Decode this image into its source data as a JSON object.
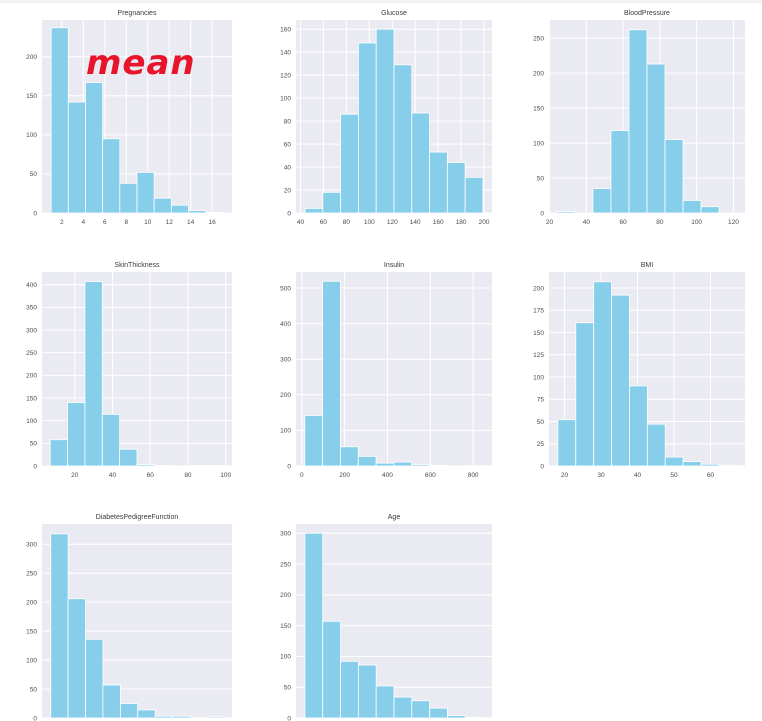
{
  "chart_data": [
    {
      "type": "bar",
      "title": "Pregnancies",
      "xlim": [
        0.15,
        17.85
      ],
      "ylim": [
        0,
        247
      ],
      "bins": [
        [
          1,
          2.6
        ],
        [
          2.6,
          4.2
        ],
        [
          4.2,
          5.8
        ],
        [
          5.8,
          7.4
        ],
        [
          7.4,
          9.0
        ],
        [
          9.0,
          10.6
        ],
        [
          10.6,
          12.2
        ],
        [
          12.2,
          13.8
        ],
        [
          13.8,
          15.4
        ],
        [
          15.4,
          17.0
        ]
      ],
      "values": [
        237,
        142,
        167,
        95,
        38,
        52,
        19,
        10,
        3,
        1
      ],
      "xticks": [
        2,
        4,
        6,
        8,
        10,
        12,
        14,
        16
      ],
      "yticks": [
        0,
        50,
        100,
        150,
        200
      ],
      "color": "#87ceeb",
      "annotation": "mean"
    },
    {
      "type": "bar",
      "title": "Glucose",
      "xlim": [
        36.1,
        206.9
      ],
      "ylim": [
        0,
        168
      ],
      "bins": [
        [
          44,
          59.5
        ],
        [
          59.5,
          75
        ],
        [
          75,
          90.5
        ],
        [
          90.5,
          106
        ],
        [
          106,
          121.5
        ],
        [
          121.5,
          137
        ],
        [
          137,
          152.5
        ],
        [
          152.5,
          168
        ],
        [
          168,
          183.5
        ],
        [
          183.5,
          199
        ]
      ],
      "values": [
        4,
        18,
        86,
        148,
        160,
        129,
        87,
        53,
        44,
        31
      ],
      "xticks": [
        40,
        60,
        80,
        100,
        120,
        140,
        160,
        180,
        200
      ],
      "yticks": [
        0,
        20,
        40,
        60,
        80,
        100,
        120,
        140,
        160
      ],
      "color": "#87ceeb"
    },
    {
      "type": "bar",
      "title": "BloodPressure",
      "xlim": [
        19.7,
        126.3
      ],
      "ylim": [
        0,
        276
      ],
      "bins": [
        [
          24,
          33.8
        ],
        [
          33.8,
          43.6
        ],
        [
          43.6,
          53.4
        ],
        [
          53.4,
          63.2
        ],
        [
          63.2,
          73
        ],
        [
          73,
          82.8
        ],
        [
          82.8,
          92.6
        ],
        [
          92.6,
          102.4
        ],
        [
          102.4,
          112.2
        ],
        [
          112.2,
          122
        ]
      ],
      "values": [
        2,
        0,
        35,
        118,
        262,
        213,
        105,
        18,
        9,
        0
      ],
      "xticks": [
        20,
        40,
        60,
        80,
        100,
        120
      ],
      "yticks": [
        0,
        50,
        100,
        150,
        200,
        250
      ],
      "color": "#87ceeb"
    },
    {
      "type": "bar",
      "title": "SkinThickness",
      "xlim": [
        2.65,
        103.35
      ],
      "ylim": [
        0,
        428
      ],
      "bins": [
        [
          7,
          16.2
        ],
        [
          16.2,
          25.4
        ],
        [
          25.4,
          34.6
        ],
        [
          34.6,
          43.8
        ],
        [
          43.8,
          53
        ],
        [
          53,
          62.2
        ],
        [
          62.2,
          71.4
        ],
        [
          71.4,
          80.6
        ],
        [
          80.6,
          89.8
        ],
        [
          89.8,
          99
        ]
      ],
      "values": [
        58,
        140,
        407,
        114,
        37,
        3,
        1,
        0,
        1,
        1
      ],
      "xticks": [
        20,
        40,
        60,
        80,
        100
      ],
      "yticks": [
        0,
        50,
        100,
        150,
        200,
        250,
        300,
        350,
        400
      ],
      "color": "#87ceeb"
    },
    {
      "type": "bar",
      "title": "Insulin",
      "xlim": [
        -27.05,
        888.05
      ],
      "ylim": [
        0,
        545
      ],
      "bins": [
        [
          14,
          97.2
        ],
        [
          97.2,
          180.4
        ],
        [
          180.4,
          263.6
        ],
        [
          263.6,
          346.8
        ],
        [
          346.8,
          430
        ],
        [
          430,
          513.2
        ],
        [
          513.2,
          596.4
        ],
        [
          596.4,
          679.6
        ],
        [
          679.6,
          762.8
        ],
        [
          762.8,
          846
        ]
      ],
      "values": [
        142,
        519,
        54,
        27,
        8,
        11,
        4,
        2,
        0,
        1
      ],
      "xticks": [
        0,
        200,
        400,
        600,
        800
      ],
      "yticks": [
        0,
        100,
        200,
        300,
        400,
        500
      ],
      "color": "#87ceeb"
    },
    {
      "type": "bar",
      "title": "BMI",
      "xlim": [
        15.77,
        69.43
      ],
      "ylim": [
        0,
        218
      ],
      "bins": [
        [
          18.2,
          23.1
        ],
        [
          23.1,
          28.0
        ],
        [
          28.0,
          32.9
        ],
        [
          32.9,
          37.8
        ],
        [
          37.8,
          42.7
        ],
        [
          42.7,
          47.6
        ],
        [
          47.6,
          52.5
        ],
        [
          52.5,
          57.4
        ],
        [
          57.4,
          62.3
        ],
        [
          62.3,
          67.1
        ]
      ],
      "values": [
        52,
        161,
        207,
        192,
        90,
        47,
        10,
        5,
        2,
        1
      ],
      "xticks": [
        20,
        30,
        40,
        50,
        60
      ],
      "yticks": [
        0,
        25,
        50,
        75,
        100,
        125,
        150,
        175,
        200
      ],
      "color": "#87ceeb"
    },
    {
      "type": "bar",
      "title": "DiabetesPedigreeFunction",
      "xlim": [
        -0.04,
        2.52
      ],
      "ylim": [
        0,
        335
      ],
      "bins": [
        [
          0.078,
          0.312
        ],
        [
          0.312,
          0.547
        ],
        [
          0.547,
          0.781
        ],
        [
          0.781,
          1.016
        ],
        [
          1.016,
          1.25
        ],
        [
          1.25,
          1.485
        ],
        [
          1.485,
          1.719
        ],
        [
          1.719,
          1.954
        ],
        [
          1.954,
          2.188
        ],
        [
          2.188,
          2.42
        ]
      ],
      "values": [
        318,
        206,
        136,
        57,
        25,
        14,
        3,
        3,
        0,
        2
      ],
      "xticks": [],
      "yticks": [
        0,
        50,
        100,
        150,
        200,
        250,
        300
      ],
      "color": "#87ceeb"
    },
    {
      "type": "bar",
      "title": "Age",
      "xlim": [
        18,
        84
      ],
      "ylim": [
        0,
        315
      ],
      "bins": [
        [
          21,
          27
        ],
        [
          27,
          33
        ],
        [
          33,
          39
        ],
        [
          39,
          45
        ],
        [
          45,
          51
        ],
        [
          51,
          57
        ],
        [
          57,
          63
        ],
        [
          63,
          69
        ],
        [
          69,
          75
        ],
        [
          75,
          81
        ]
      ],
      "values": [
        300,
        157,
        92,
        86,
        52,
        34,
        28,
        16,
        4,
        1
      ],
      "xticks": [],
      "yticks": [
        0,
        50,
        100,
        150,
        200,
        250,
        300
      ],
      "color": "#87ceeb"
    }
  ]
}
